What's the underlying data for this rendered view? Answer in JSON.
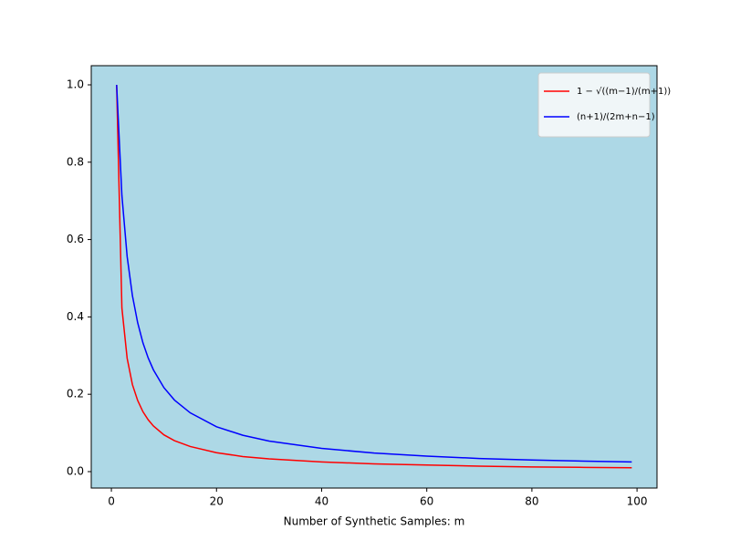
{
  "chart_data": {
    "type": "line",
    "x_label": "Number of Synthetic Samples: m",
    "x": [
      1,
      2,
      3,
      4,
      5,
      6,
      7,
      8,
      10,
      12,
      15,
      20,
      25,
      30,
      40,
      50,
      60,
      70,
      80,
      90,
      99
    ],
    "series": [
      {
        "name": "1 − √((m−1)/(m+1))",
        "color": "#ff0000",
        "values": [
          1,
          0.423,
          0.293,
          0.225,
          0.184,
          0.155,
          0.134,
          0.118,
          0.095,
          0.08,
          0.065,
          0.049,
          0.039,
          0.033,
          0.025,
          0.02,
          0.017,
          0.014,
          0.012,
          0.011,
          0.01
        ]
      },
      {
        "name": "(n+1)/(2m+n−1)",
        "color": "#0000ff",
        "values": [
          1,
          0.714,
          0.556,
          0.455,
          0.385,
          0.333,
          0.294,
          0.263,
          0.217,
          0.185,
          0.152,
          0.116,
          0.094,
          0.079,
          0.06,
          0.048,
          0.04,
          0.034,
          0.03,
          0.027,
          0.025
        ]
      }
    ],
    "xlim": [
      -3.83,
      103.8
    ],
    "ylim": [
      -0.0425,
      1.0495
    ],
    "xticks": [
      0,
      20,
      40,
      60,
      80,
      100
    ],
    "yticks": [
      {
        "value": 0,
        "label": "0.0"
      },
      {
        "value": 0.2,
        "label": "0.2"
      },
      {
        "value": 0.4,
        "label": "0.4"
      },
      {
        "value": 0.6,
        "label": "0.6"
      },
      {
        "value": 0.8,
        "label": "0.8"
      },
      {
        "value": 1,
        "label": "1.0"
      }
    ],
    "background": "#add8e6",
    "legend": "upper-right"
  }
}
